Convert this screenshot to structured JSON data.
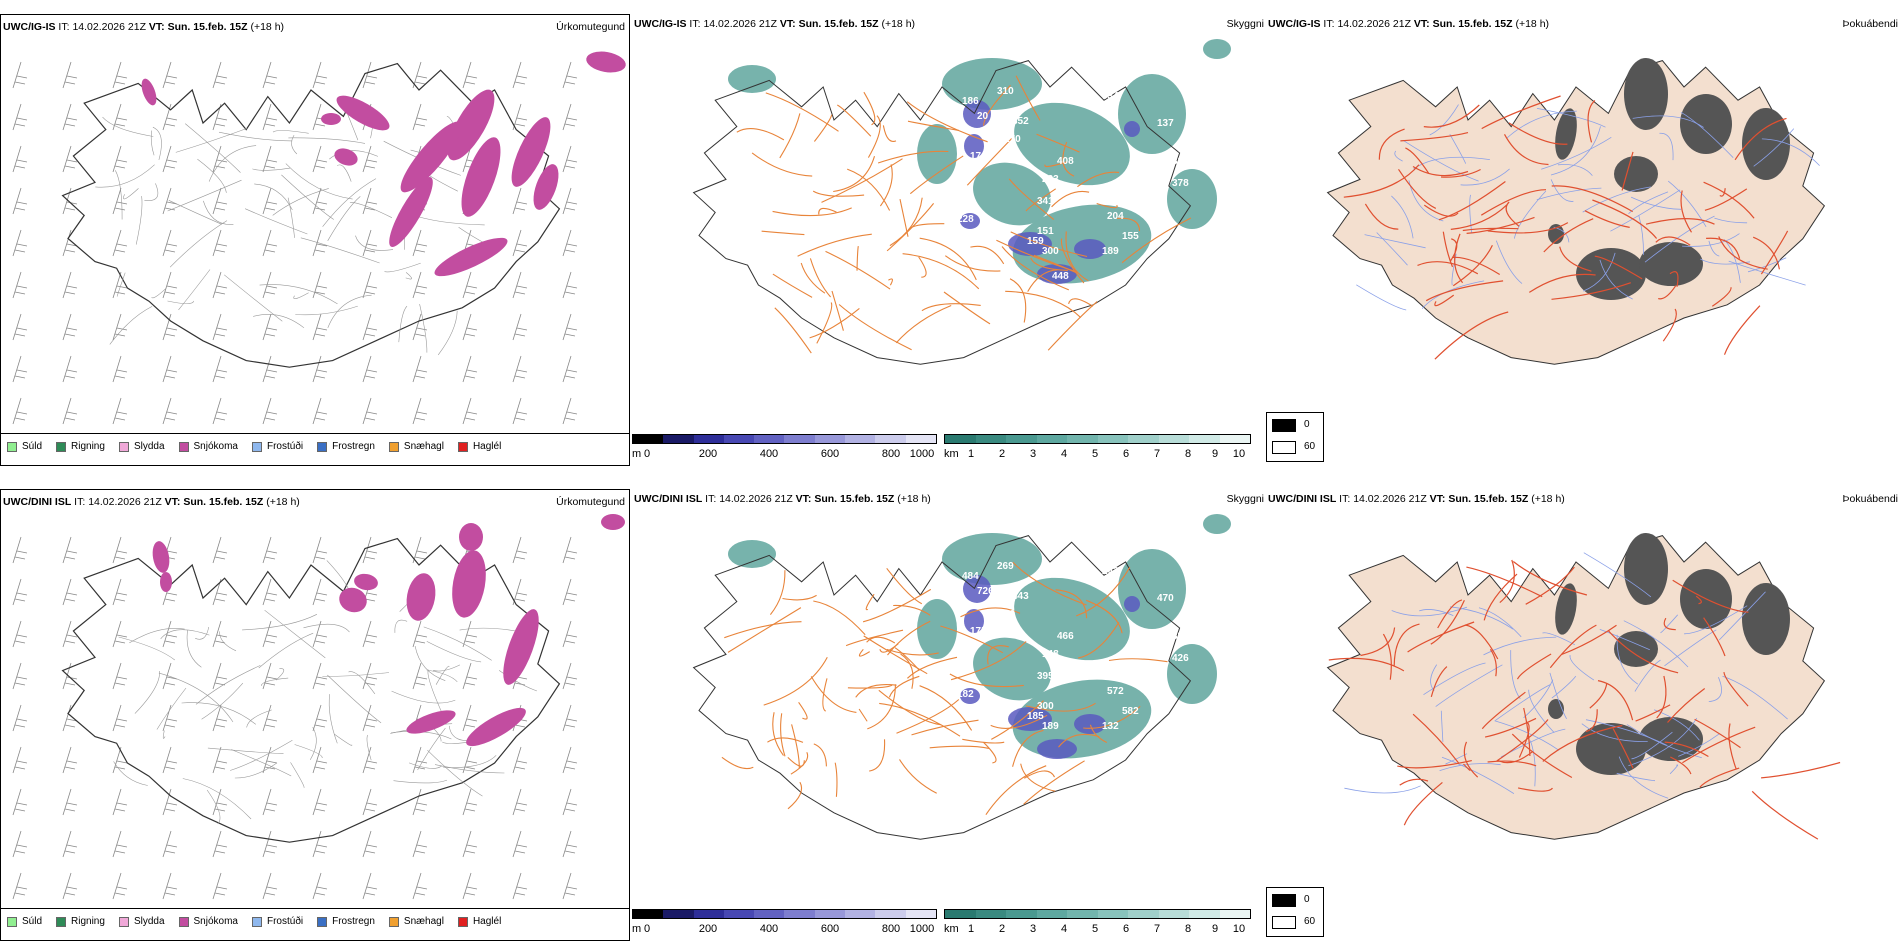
{
  "rows": [
    {
      "model": "UWC/IG-IS",
      "it_label": "IT:",
      "it_value": "14.02.2026 21Z",
      "vt_label": "VT:",
      "vt_value": "Sun. 15.feb. 15Z",
      "lead": "(+18 h)"
    },
    {
      "model": "UWC/DINI ISL",
      "it_label": "IT:",
      "it_value": "14.02.2026 21Z",
      "vt_label": "VT:",
      "vt_value": "Sun. 15.feb. 15Z",
      "lead": "(+18 h)"
    }
  ],
  "panel_types": {
    "precip": "Úrkomutegund",
    "cloud": "Skyggni",
    "fog": "Þokuábendi"
  },
  "precip_legend": [
    {
      "label": "Súld",
      "color": "#90ee90"
    },
    {
      "label": "Rigning",
      "color": "#2e8b57"
    },
    {
      "label": "Slydda",
      "color": "#f0a8d8"
    },
    {
      "label": "Snjókoma",
      "color": "#c24da0"
    },
    {
      "label": "Frostúði",
      "color": "#8fb8ee"
    },
    {
      "label": "Frostregn",
      "color": "#3a6fc4"
    },
    {
      "label": "Snæhagl",
      "color": "#f0a030"
    },
    {
      "label": "Haglél",
      "color": "#e02020"
    }
  ],
  "cloud_base_bar": {
    "unit": "m",
    "ticks": [
      "0",
      "200",
      "400",
      "600",
      "800",
      "1000"
    ],
    "colors": [
      "#000000",
      "#1a1a66",
      "#2e2e99",
      "#4848b3",
      "#6262c2",
      "#7e7ecf",
      "#9898d9",
      "#b2b2e3",
      "#ccccec",
      "#e4e4f5"
    ]
  },
  "visibility_bar": {
    "unit": "km",
    "ticks": [
      "1",
      "2",
      "3",
      "4",
      "5",
      "6",
      "7",
      "8",
      "9",
      "10"
    ],
    "colors": [
      "#2a7a70",
      "#3a8a80",
      "#4a9990",
      "#5ea8a0",
      "#72b5ad",
      "#88c3bc",
      "#a0d0ca",
      "#b8ddd8",
      "#d0eae6",
      "#eaf5f3"
    ]
  },
  "fog_legend": {
    "high": "0",
    "low": "60",
    "high_color": "#000000",
    "low_color": "#ffffff"
  },
  "cloud_labels_top": [
    "186",
    "20",
    "310",
    "352",
    "170",
    "174",
    "283",
    "934",
    "137",
    "408",
    "223",
    "316",
    "341",
    "378",
    "228",
    "151",
    "159",
    "300",
    "204",
    "155",
    "189",
    "448",
    "329"
  ],
  "cloud_labels_bottom": [
    "484",
    "726",
    "269",
    "443",
    "20",
    "175",
    "411",
    "243",
    "470",
    "466",
    "148",
    "382",
    "395",
    "426",
    "182",
    "300",
    "185",
    "189",
    "572",
    "582",
    "132"
  ]
}
